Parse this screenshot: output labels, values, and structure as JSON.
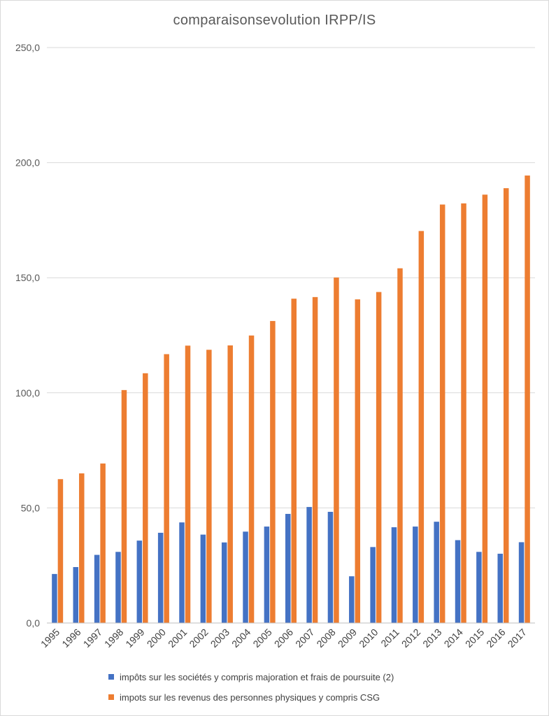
{
  "chart_data": {
    "type": "bar",
    "title": "comparaisonsevolution  IRPP/IS",
    "xlabel": "",
    "ylabel": "",
    "ylim": [
      0,
      250
    ],
    "yticks": [
      0,
      50,
      100,
      150,
      200,
      250
    ],
    "ytick_labels": [
      "0,0",
      "50,0",
      "100,0",
      "150,0",
      "200,0",
      "250,0"
    ],
    "grid": true,
    "legend_position": "bottom",
    "categories": [
      "1995",
      "1996",
      "1997",
      "1998",
      "1999",
      "2000",
      "2001",
      "2002",
      "2003",
      "2004",
      "2005",
      "2006",
      "2007",
      "2008",
      "2009",
      "2010",
      "2011",
      "2012",
      "2013",
      "2014",
      "2015",
      "2016",
      "2017"
    ],
    "series": [
      {
        "name": "impôts sur les sociétés y compris majoration et frais de poursuite (2)",
        "color": "#4472c4",
        "values": [
          21.3,
          24.3,
          29.6,
          30.9,
          35.8,
          39.2,
          43.7,
          38.4,
          35.0,
          39.7,
          41.9,
          47.4,
          50.4,
          48.3,
          20.3,
          33.0,
          41.6,
          41.9,
          44.0,
          36.0,
          30.9,
          30.1,
          35.1
        ]
      },
      {
        "name": "impots sur les revenus des personnes physiques y compris CSG",
        "color": "#ed7d31",
        "values": [
          62.5,
          65.0,
          69.3,
          101.2,
          108.5,
          116.8,
          120.5,
          118.7,
          120.6,
          124.9,
          131.2,
          140.9,
          141.6,
          150.1,
          140.6,
          143.8,
          154.1,
          170.3,
          181.8,
          182.3,
          186.1,
          188.9,
          194.4
        ]
      }
    ]
  }
}
